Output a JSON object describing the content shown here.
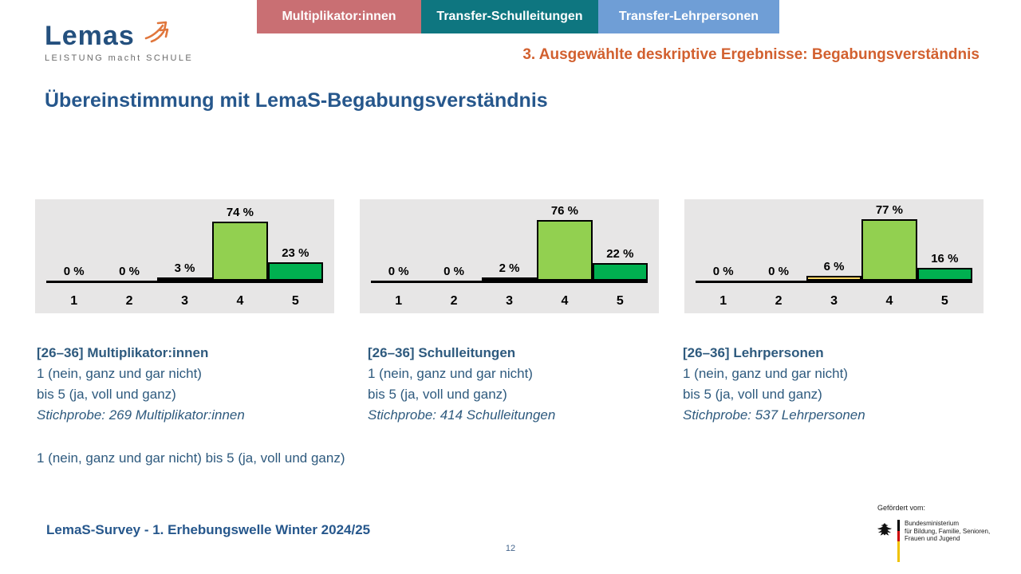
{
  "tabs": [
    {
      "label": "Multiplikator:innen",
      "color": "#c96f73"
    },
    {
      "label": "Transfer-Schulleitungen",
      "color": "#0e7680"
    },
    {
      "label": "Transfer-Lehrpersonen",
      "color": "#6f9ed6"
    }
  ],
  "logo": {
    "wordmark_main": "Lema",
    "wordmark_accent": "s",
    "tagline": "LEISTUNG macht SCHULE",
    "brand_color": "#24507e",
    "arrow_color": "#e0763c"
  },
  "header": {
    "section_title": "3. Ausgewählte deskriptive Ergebnisse: Begabungsverständnis",
    "section_color": "#d2602f"
  },
  "page_title": "Übereinstimmung mit LemaS-Begabungsverständnis",
  "chart_data": [
    {
      "type": "bar",
      "title": "[26–36] Multiplikator:innen",
      "categories": [
        "1",
        "2",
        "3",
        "4",
        "5"
      ],
      "values": [
        0,
        0,
        3,
        74,
        23
      ],
      "value_labels": [
        "0 %",
        "0 %",
        "3 %",
        "74 %",
        "23 %"
      ],
      "bar_colors": [
        "#ffd966",
        "#ffd966",
        "#ffd966",
        "#92d050",
        "#00b050"
      ],
      "ylim": [
        0,
        100
      ],
      "grid": false,
      "legend": false,
      "background": "#e7e6e6"
    },
    {
      "type": "bar",
      "title": "[26–36] Schulleitungen",
      "categories": [
        "1",
        "2",
        "3",
        "4",
        "5"
      ],
      "values": [
        0,
        0,
        2,
        76,
        22
      ],
      "value_labels": [
        "0 %",
        "0 %",
        "2 %",
        "76 %",
        "22 %"
      ],
      "bar_colors": [
        "#ffd966",
        "#ffd966",
        "#ffd966",
        "#92d050",
        "#00b050"
      ],
      "ylim": [
        0,
        100
      ],
      "grid": false,
      "legend": false,
      "background": "#e7e6e6"
    },
    {
      "type": "bar",
      "title": "[26–36] Lehrpersonen",
      "categories": [
        "1",
        "2",
        "3",
        "4",
        "5"
      ],
      "values": [
        0,
        0,
        6,
        77,
        16
      ],
      "value_labels": [
        "0 %",
        "0 %",
        "6 %",
        "77 %",
        "16 %"
      ],
      "bar_colors": [
        "#ffd966",
        "#ffd966",
        "#ffd966",
        "#92d050",
        "#00b050"
      ],
      "ylim": [
        0,
        100
      ],
      "grid": false,
      "legend": false,
      "background": "#e7e6e6"
    }
  ],
  "panels": [
    {
      "heading": "[26–36] Multiplikator:innen",
      "line1": "1 (nein, ganz und gar nicht)",
      "line2": "bis 5 (ja, voll und ganz)",
      "sample": "Stichprobe: 269 Multiplikator:innen"
    },
    {
      "heading": "[26–36] Schulleitungen",
      "line1": "1 (nein, ganz und gar nicht)",
      "line2": "bis 5 (ja, voll und ganz)",
      "sample": "Stichprobe: 414 Schulleitungen"
    },
    {
      "heading": "[26–36] Lehrpersonen",
      "line1": "1 (nein, ganz und gar nicht)",
      "line2": "bis 5 (ja, voll und ganz)",
      "sample": "Stichprobe: 537 Lehrpersonen"
    }
  ],
  "scale_note": "1 (nein, ganz und gar nicht) bis 5 (ja, voll und ganz)",
  "footer": {
    "source": "LemaS-Survey - 1. Erhebungswelle Winter 2024/25",
    "page_number": "12"
  },
  "funding": {
    "label": "Gefördert vom:",
    "ministry_lines": [
      "Bundesministerium",
      "für Bildung, Familie, Senioren,",
      "Frauen und Jugend"
    ],
    "flag_colors": [
      "#000000",
      "#cc0000",
      "#f0c200"
    ]
  }
}
